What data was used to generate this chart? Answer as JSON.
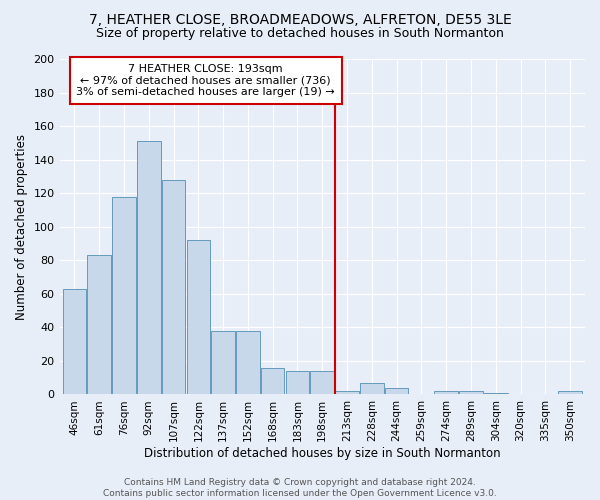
{
  "title": "7, HEATHER CLOSE, BROADMEADOWS, ALFRETON, DE55 3LE",
  "subtitle": "Size of property relative to detached houses in South Normanton",
  "xlabel": "Distribution of detached houses by size in South Normanton",
  "ylabel": "Number of detached properties",
  "categories": [
    "46sqm",
    "61sqm",
    "76sqm",
    "92sqm",
    "107sqm",
    "122sqm",
    "137sqm",
    "152sqm",
    "168sqm",
    "183sqm",
    "198sqm",
    "213sqm",
    "228sqm",
    "244sqm",
    "259sqm",
    "274sqm",
    "289sqm",
    "304sqm",
    "320sqm",
    "335sqm",
    "350sqm"
  ],
  "values": [
    63,
    83,
    118,
    151,
    128,
    92,
    38,
    38,
    16,
    14,
    14,
    2,
    7,
    4,
    0,
    2,
    2,
    1,
    0,
    0,
    2
  ],
  "bar_color": "#c8d8eb",
  "bar_edge_color": "#6699bb",
  "ylim": [
    0,
    200
  ],
  "yticks": [
    0,
    20,
    40,
    60,
    80,
    100,
    120,
    140,
    160,
    180,
    200
  ],
  "annotation_text": "7 HEATHER CLOSE: 193sqm\n← 97% of detached houses are smaller (736)\n3% of semi-detached houses are larger (19) →",
  "vline_x_index": 10.5,
  "vline_color": "#cc0000",
  "annotation_box_edge": "#cc0000",
  "background_color": "#e8eef8",
  "footer": "Contains HM Land Registry data © Crown copyright and database right 2024.\nContains public sector information licensed under the Open Government Licence v3.0.",
  "title_fontsize": 10,
  "subtitle_fontsize": 9,
  "annotation_fontsize": 8
}
